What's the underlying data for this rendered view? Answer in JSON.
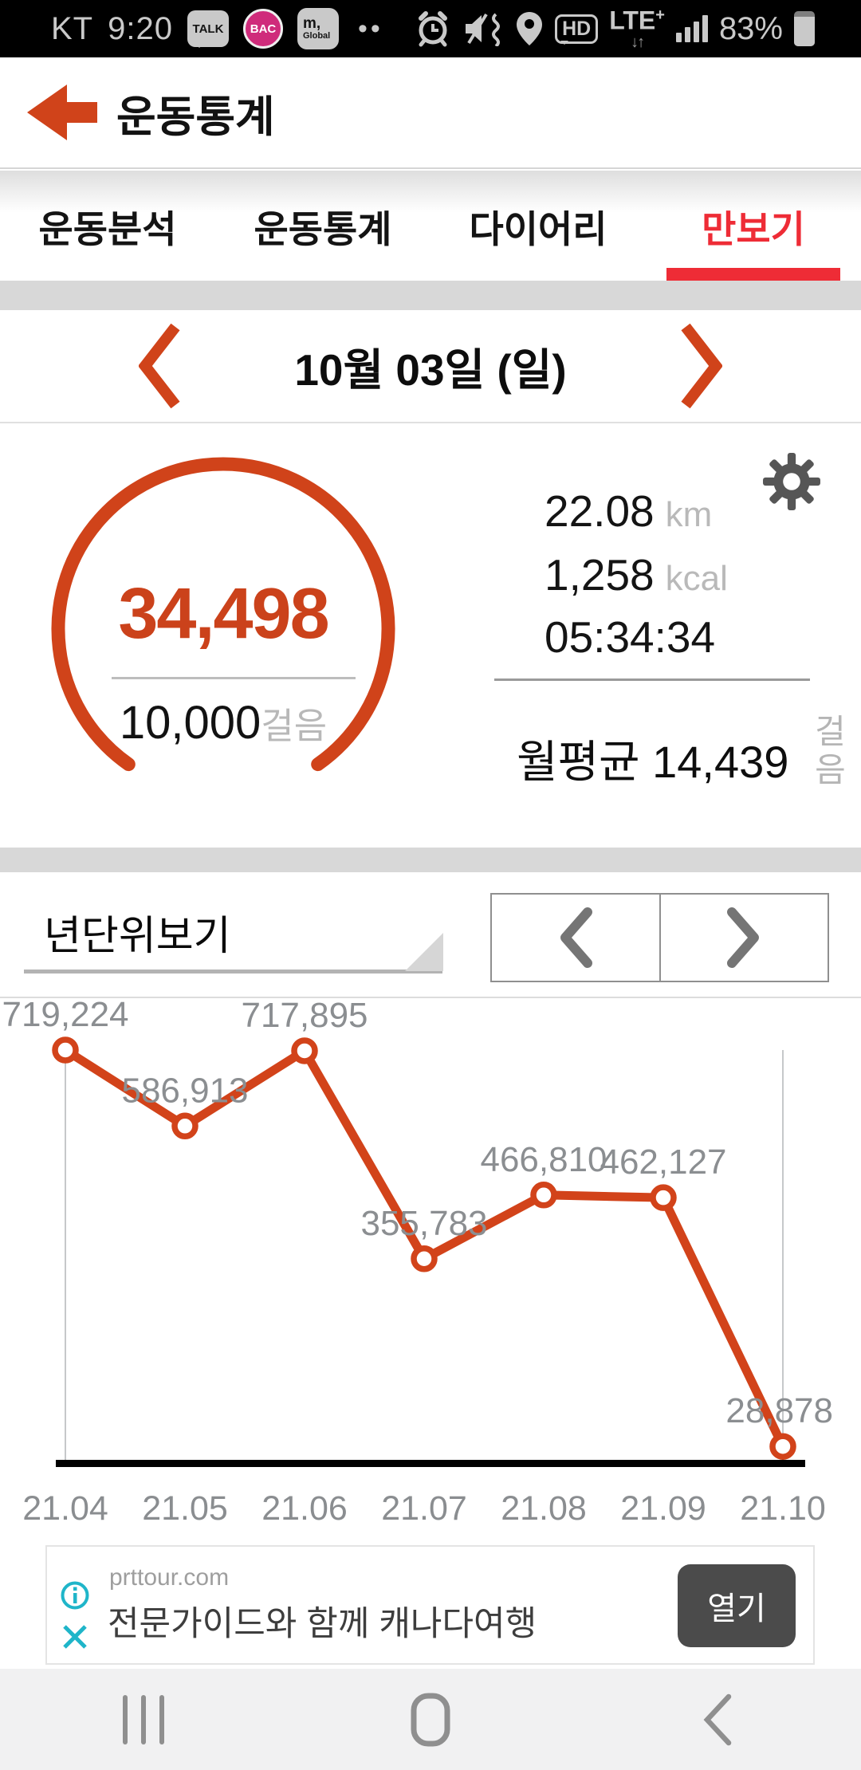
{
  "status_bar": {
    "carrier": "KT",
    "time": "9:20",
    "talk_label": "TALK",
    "bac_label": "BAC",
    "m_global_line1": "m,",
    "m_global_line2": "Global",
    "more_dots": "••",
    "hd_label": "HD",
    "network_label": "LTE",
    "network_plus": "+",
    "network_arrows": "↓↑",
    "battery_percent": "83%"
  },
  "header": {
    "title": "운동통계"
  },
  "tabs": {
    "items": [
      {
        "label": "운동분석",
        "active": false
      },
      {
        "label": "운동통계",
        "active": false
      },
      {
        "label": "다이어리",
        "active": false
      },
      {
        "label": "만보기",
        "active": true
      }
    ]
  },
  "date_nav": {
    "label": "10월 03일 (일)"
  },
  "summary": {
    "steps_value": "34,498",
    "goal_value": "10,000",
    "goal_unit": "걸음",
    "distance_value": "22.08",
    "distance_unit": "km",
    "calories_value": "1,258",
    "calories_unit": "kcal",
    "duration": "05:34:34",
    "monthly_avg_label": "월평균",
    "monthly_avg_value": "14,439",
    "monthly_avg_unit": "걸음"
  },
  "period_selector": {
    "selected": "년단위보기"
  },
  "chart_data": {
    "type": "line",
    "title": "",
    "xlabel": "",
    "ylabel": "",
    "x": [
      "21.04",
      "21.05",
      "21.06",
      "21.07",
      "21.08",
      "21.09",
      "21.10"
    ],
    "values": [
      719224,
      586913,
      717895,
      355783,
      466810,
      462127,
      28878
    ],
    "point_labels": [
      "719,224",
      "586,913",
      "717,895",
      "355,783",
      "466,810",
      "462,127",
      "28,878"
    ],
    "ylim": [
      0,
      719224
    ],
    "grid": "vertical boundary lines at first and last x only",
    "legend": "none",
    "line_color": "#d2431a",
    "point_fill": "#ffffff",
    "label_color": "#8b8e91",
    "tick_color": "#8a8d90",
    "axis_color": "#000000"
  },
  "ad_banner": {
    "domain": "prttour.com",
    "headline": "전문가이드와 함께 캐나다여행",
    "open_label": "열기"
  },
  "icons": {
    "status": [
      "kakaotalk-bubble",
      "bac-badge",
      "m-global-badge",
      "alarm-icon",
      "vibrate-mute-icon",
      "location-icon",
      "hd-call-icon",
      "lte-plus-icon",
      "signal-bars-icon",
      "battery-icon"
    ],
    "actions": [
      "back-arrow-icon",
      "prev-chevron-icon",
      "next-chevron-icon",
      "gear-icon",
      "dropdown-triangle-icon",
      "ad-info-icon",
      "ad-close-icon"
    ],
    "navbar": [
      "recents-icon",
      "home-icon",
      "nav-back-icon"
    ]
  },
  "colors": {
    "accent_orange": "#d0431a",
    "steps_number": "#cb421b",
    "active_tab_red": "#ee2c36",
    "ad_teal": "#1fb5c9",
    "status_bar_bg": "#000000",
    "nav_bar_bg": "#f1f1f2"
  }
}
